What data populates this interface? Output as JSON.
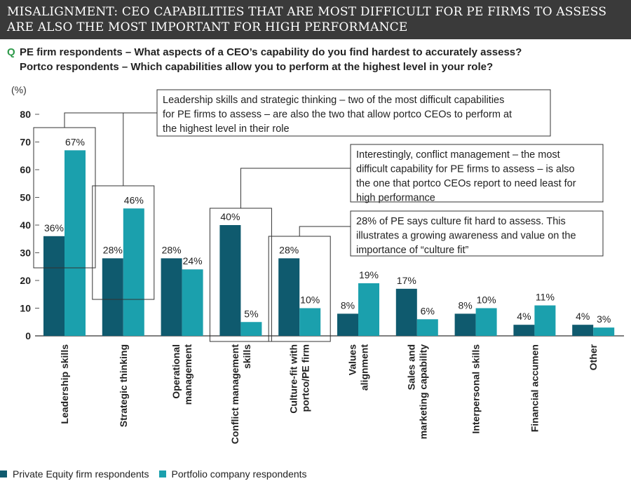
{
  "header": {
    "title": "Misalignment: CEO capabilities that are most difficult for PE firms to assess are also the most important for high performance"
  },
  "question": {
    "marker": "Q",
    "line1": "PE firm respondents – What aspects of a CEO’s capability do you find hardest to accurately assess?",
    "line2": "Portco respondents – Which capabilities allow you to perform at the highest level in your role?"
  },
  "colors": {
    "pe": "#0f5a6e",
    "portco": "#1ba0ad",
    "header_bg": "#3a3a3a",
    "accent_q": "#2e9a4a"
  },
  "chart_data": {
    "type": "bar",
    "y_unit_label": "(%)",
    "ylim": [
      0,
      80
    ],
    "yticks": [
      0,
      10,
      20,
      30,
      40,
      50,
      60,
      70,
      80
    ],
    "categories": [
      [
        "Leadership skills"
      ],
      [
        "Strategic thinking"
      ],
      [
        "Operational",
        "management"
      ],
      [
        "Conflict management",
        "skills"
      ],
      [
        "Culture-fit with",
        "portco/PE firm"
      ],
      [
        "Values",
        "alignment"
      ],
      [
        "Sales and",
        "marketing capability"
      ],
      [
        "Interpersonal skills"
      ],
      [
        "Financial accumen"
      ],
      [
        "Other"
      ]
    ],
    "series": [
      {
        "name": "Private Equity firm respondents",
        "values": [
          36,
          28,
          28,
          40,
          28,
          8,
          17,
          8,
          4,
          4
        ]
      },
      {
        "name": "Portfolio company respondents",
        "values": [
          67,
          46,
          24,
          5,
          10,
          19,
          6,
          10,
          11,
          3
        ]
      }
    ],
    "annotations": [
      "Leadership skills and strategic thinking – two of the most difficult capabilities for PE firms to assess – are also the two that allow portco CEOs to perform at the highest level in their role",
      "Interestingly, conflict management – the most difficult capability for PE firms to assess – is also the one that portco CEOs report to need least for high performance",
      "28% of PE says culture fit hard to assess. This illustrates a growing awareness and value on the importance of “culture fit”"
    ],
    "legend_position": "bottom-left",
    "grid": false
  }
}
